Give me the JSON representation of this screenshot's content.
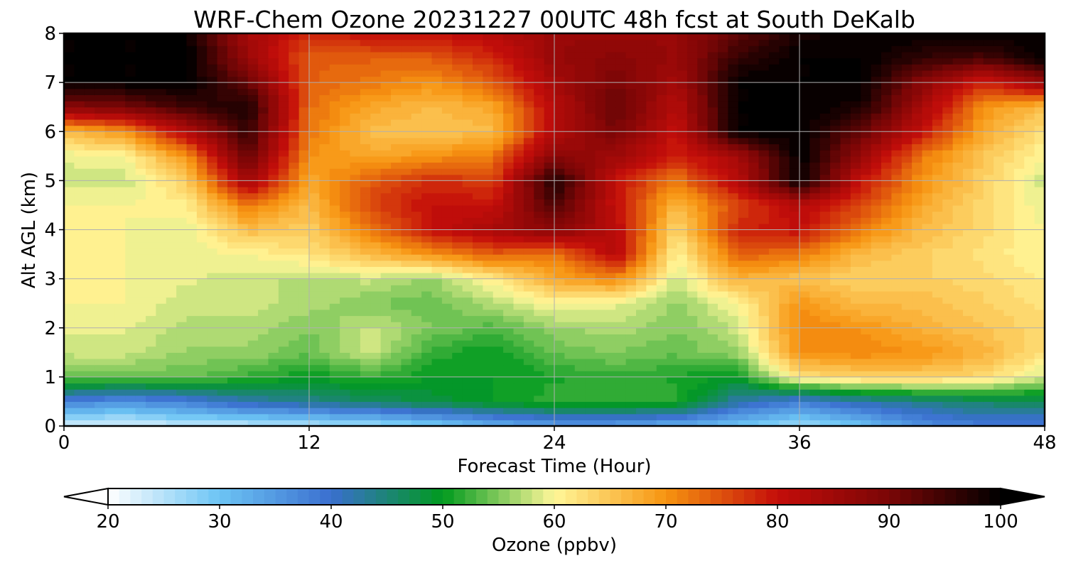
{
  "chart_data": [
    {
      "type": "heatmap",
      "title": "WRF-Chem Ozone  20231227 00UTC 48h fcst at South DeKalb",
      "xlabel": "Forecast Time (Hour)",
      "ylabel": "Alt AGL (km)",
      "xlim": [
        0,
        48
      ],
      "ylim": [
        0,
        8
      ],
      "x_ticks": [
        "0",
        "12",
        "24",
        "36",
        "48"
      ],
      "y_ticks": [
        "0",
        "1",
        "2",
        "3",
        "4",
        "5",
        "6",
        "7",
        "8"
      ],
      "grid": true,
      "x": [
        0,
        3,
        6,
        9,
        12,
        15,
        18,
        21,
        24,
        27,
        30,
        33,
        36,
        39,
        42,
        45,
        48
      ],
      "y": [
        0,
        0.5,
        1,
        1.5,
        2,
        2.5,
        3,
        3.5,
        4,
        4.5,
        5,
        5.5,
        6,
        6.5,
        7,
        7.5,
        8
      ],
      "values": [
        [
          22,
          22,
          24,
          24,
          25,
          26,
          28,
          32,
          34,
          34,
          32,
          30,
          26,
          30,
          36,
          38,
          38
        ],
        [
          38,
          36,
          38,
          42,
          44,
          46,
          48,
          50,
          52,
          52,
          52,
          42,
          38,
          42,
          44,
          46,
          46
        ],
        [
          54,
          54,
          54,
          52,
          50,
          52,
          50,
          50,
          51,
          52,
          51,
          50,
          62,
          64,
          64,
          63,
          58
        ],
        [
          58,
          58,
          56,
          56,
          54,
          58,
          52,
          50,
          54,
          55,
          54,
          56,
          70,
          71,
          70,
          67,
          62
        ],
        [
          59,
          59,
          57,
          57,
          55,
          58,
          55,
          53,
          56,
          57,
          55,
          58,
          71,
          70,
          67,
          65,
          63
        ],
        [
          60,
          60,
          58,
          58,
          57,
          55,
          54,
          57,
          60,
          59,
          56,
          60,
          70,
          66,
          66,
          64,
          62
        ],
        [
          61,
          60,
          59,
          58,
          57,
          58,
          56,
          61,
          68,
          71,
          58,
          67,
          65,
          64,
          64,
          63,
          61
        ],
        [
          61,
          60,
          59,
          60,
          62,
          66,
          70,
          74,
          72,
          82,
          60,
          74,
          72,
          66,
          64,
          62,
          60
        ],
        [
          61,
          60,
          59,
          66,
          64,
          72,
          80,
          84,
          88,
          82,
          63,
          78,
          80,
          72,
          66,
          63,
          60
        ],
        [
          60,
          60,
          61,
          72,
          66,
          76,
          80,
          80,
          94,
          80,
          66,
          76,
          82,
          76,
          68,
          63,
          59
        ],
        [
          58,
          58,
          64,
          85,
          68,
          74,
          78,
          76,
          98,
          80,
          72,
          82,
          100,
          80,
          70,
          64,
          58
        ],
        [
          59,
          60,
          70,
          92,
          70,
          68,
          70,
          72,
          88,
          85,
          78,
          84,
          100,
          86,
          72,
          65,
          60
        ],
        [
          66,
          70,
          82,
          96,
          72,
          66,
          65,
          66,
          82,
          90,
          80,
          100,
          100,
          92,
          80,
          68,
          62
        ],
        [
          88,
          90,
          95,
          98,
          73,
          68,
          66,
          68,
          82,
          92,
          82,
          100,
          100,
          98,
          84,
          70,
          66
        ],
        [
          100,
          100,
          100,
          92,
          74,
          72,
          70,
          74,
          84,
          90,
          84,
          100,
          100,
          100,
          88,
          78,
          86
        ],
        [
          100,
          100,
          100,
          86,
          74,
          74,
          74,
          78,
          86,
          88,
          86,
          96,
          100,
          100,
          96,
          94,
          100
        ],
        [
          100,
          100,
          100,
          84,
          78,
          80,
          80,
          82,
          86,
          86,
          86,
          92,
          98,
          100,
          100,
          100,
          100
        ]
      ],
      "colorbar": {
        "label": "Ozone  (ppbv)",
        "min": 20,
        "max": 100,
        "ticks": [
          "20",
          "30",
          "40",
          "50",
          "60",
          "70",
          "80",
          "90",
          "100"
        ],
        "extend": "both",
        "colormap": [
          [
            20,
            "#ffffff"
          ],
          [
            30,
            "#6cc4f4"
          ],
          [
            40,
            "#3a6fcf"
          ],
          [
            50,
            "#009a1e"
          ],
          [
            60,
            "#fff799"
          ],
          [
            70,
            "#f79410"
          ],
          [
            80,
            "#c40d0a"
          ],
          [
            90,
            "#7a0606"
          ],
          [
            100,
            "#000000"
          ]
        ]
      }
    }
  ]
}
